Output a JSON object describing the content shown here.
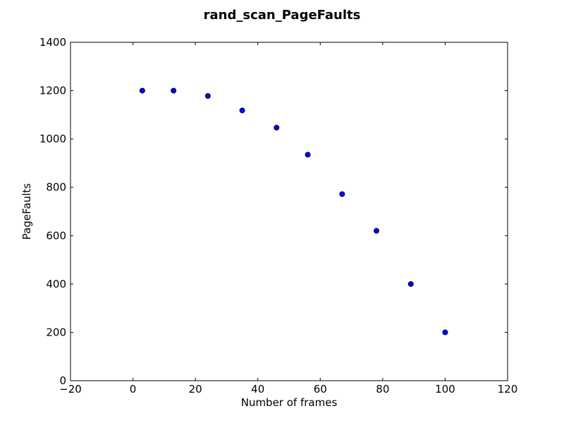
{
  "chart_data": {
    "type": "scatter",
    "title": "rand_scan_PageFaults",
    "xlabel": "Number of frames",
    "ylabel": "PageFaults",
    "xlim": [
      -20,
      120
    ],
    "ylim": [
      0,
      1400
    ],
    "xticks": [
      -20,
      0,
      20,
      40,
      60,
      80,
      100,
      120
    ],
    "yticks": [
      0,
      200,
      400,
      600,
      800,
      1000,
      1200,
      1400
    ],
    "xtick_labels": [
      "−20",
      "0",
      "20",
      "40",
      "60",
      "80",
      "100",
      "120"
    ],
    "ytick_labels": [
      "0",
      "200",
      "400",
      "600",
      "800",
      "1000",
      "1200",
      "1400"
    ],
    "grid": false,
    "marker_color": "#0000ff",
    "marker_edge_color": "#000000",
    "series": [
      {
        "x": [
          3,
          13,
          24,
          35,
          46,
          56,
          67,
          78,
          89,
          100
        ],
        "y": [
          1200,
          1200,
          1178,
          1118,
          1047,
          935,
          772,
          620,
          400,
          200
        ]
      }
    ]
  }
}
